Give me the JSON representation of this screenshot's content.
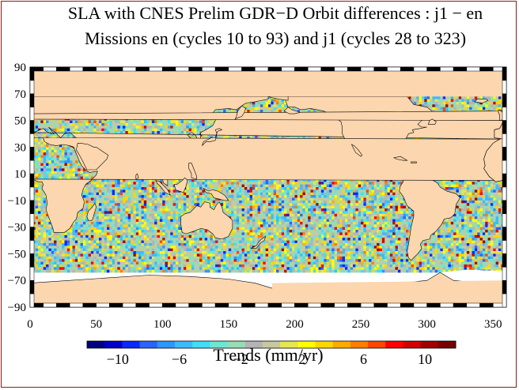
{
  "title_line1": "SLA with CNES Prelim GDR−D Orbit differences : j1 − en",
  "title_line2": "Missions en (cycles 10 to 93) and j1 (cycles 28 to 323)",
  "map": {
    "x_ticks": [
      "0",
      "50",
      "100",
      "150",
      "200",
      "250",
      "300",
      "350"
    ],
    "y_ticks": [
      "90",
      "70",
      "50",
      "30",
      "10",
      "−10",
      "−30",
      "−50",
      "−70",
      "−90"
    ],
    "xlim": [
      0,
      360
    ],
    "ylim": [
      -90,
      90
    ],
    "land_color": "#fcd6ae",
    "missing_color": "#ffffff"
  },
  "colorbar": {
    "label": "Trends (mm/yr)",
    "ticks": [
      "−10",
      "−6",
      "−2",
      "2",
      "6",
      "10"
    ],
    "range": [
      -12,
      12
    ],
    "colors": [
      "#000080",
      "#0000c8",
      "#0a28ff",
      "#2a64ff",
      "#2d96ff",
      "#3cbaff",
      "#40dcf8",
      "#6ee6d0",
      "#98dcb4",
      "#b4b4b4",
      "#c8c8a0",
      "#e6e650",
      "#ffff00",
      "#ffd700",
      "#ffaa00",
      "#ff7d00",
      "#ff4600",
      "#ff0000",
      "#d20000",
      "#a00000",
      "#780000"
    ]
  }
}
